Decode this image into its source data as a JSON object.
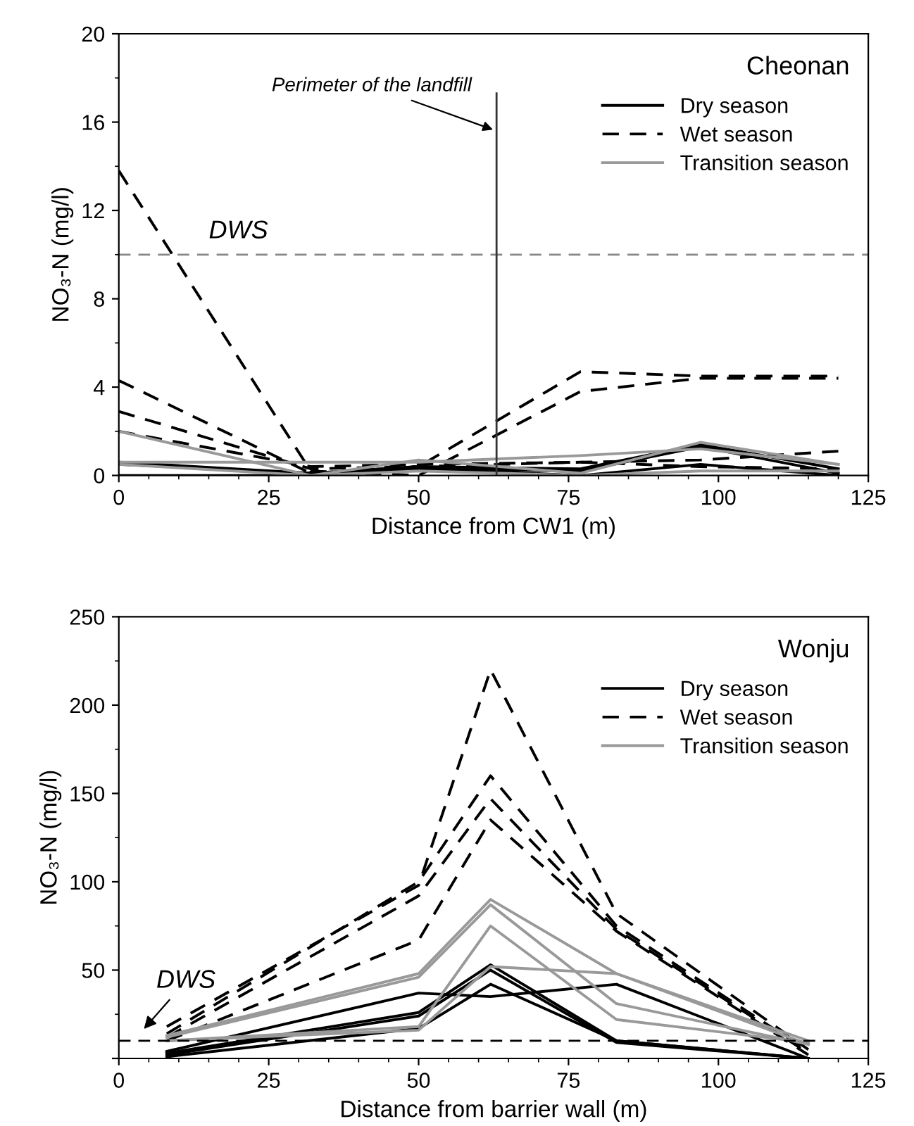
{
  "chart_data": [
    {
      "type": "line",
      "title": "Cheonan",
      "xlabel": "Distance from CW1 (m)",
      "ylabel": "NO₃-N (mg/l)",
      "xlim": [
        0,
        125
      ],
      "xticks": [
        0,
        25,
        50,
        75,
        100,
        125
      ],
      "ylim": [
        0,
        20
      ],
      "yticks": [
        0,
        4,
        8,
        12,
        16,
        20
      ],
      "grid": false,
      "legend": "top right",
      "marker": "none",
      "ref_lines": [
        {
          "axis": "y",
          "value": 10,
          "label": "DWS",
          "color": "#888888",
          "line_style": "dashed"
        },
        {
          "axis": "x",
          "value": 63,
          "label": "Perimeter of the landfill",
          "color": "#333333",
          "line_style": "solid"
        }
      ],
      "series": [
        {
          "name": "Dry season",
          "color": "#000000",
          "line_style": "solid",
          "x": [
            0,
            32,
            50,
            77,
            97,
            120
          ],
          "values": [
            0.5,
            0.1,
            0.4,
            0.3,
            1.4,
            0.3
          ]
        },
        {
          "color": "#000000",
          "line_style": "solid",
          "x": [
            0,
            32,
            50,
            77,
            97,
            120
          ],
          "values": [
            0.0,
            0.0,
            0.3,
            0.0,
            0.5,
            0.0
          ]
        },
        {
          "color": "#000000",
          "line_style": "solid",
          "x": [
            0,
            32,
            50,
            77,
            97,
            120
          ],
          "values": [
            0.6,
            0.1,
            0.3,
            0.2,
            1.3,
            0.1
          ]
        },
        {
          "name": "Wet season",
          "color": "#000000",
          "line_style": "dashed",
          "x": [
            0,
            32,
            50,
            77,
            97,
            120
          ],
          "values": [
            13.8,
            0.2,
            0.0,
            3.8,
            4.4,
            4.4
          ]
        },
        {
          "color": "#000000",
          "line_style": "dashed",
          "x": [
            0,
            32,
            50,
            77,
            97,
            120
          ],
          "values": [
            4.3,
            0.1,
            0.4,
            4.7,
            4.5,
            4.5
          ]
        },
        {
          "color": "#000000",
          "line_style": "dashed",
          "x": [
            0,
            32,
            50,
            77,
            97,
            120
          ],
          "values": [
            2.9,
            0.3,
            0.4,
            0.6,
            0.7,
            1.1
          ]
        },
        {
          "color": "#000000",
          "line_style": "dashed",
          "x": [
            0,
            32,
            50,
            77,
            97,
            120
          ],
          "values": [
            2.0,
            0.4,
            0.5,
            0.6,
            0.4,
            0.3
          ]
        },
        {
          "name": "Transition season",
          "color": "#999999",
          "line_style": "solid",
          "x": [
            0,
            32,
            50,
            77,
            97,
            120
          ],
          "values": [
            2.0,
            0.0,
            0.7,
            0.1,
            1.5,
            0.5
          ]
        },
        {
          "color": "#999999",
          "line_style": "solid",
          "x": [
            0,
            32,
            50,
            77,
            97,
            120
          ],
          "values": [
            0.6,
            0.6,
            0.6,
            0.9,
            1.2,
            0.5
          ]
        },
        {
          "color": "#999999",
          "line_style": "solid",
          "x": [
            0,
            32,
            50,
            77,
            97,
            120
          ],
          "values": [
            0.5,
            0.0,
            0.2,
            0.0,
            0.2,
            0.2
          ]
        }
      ]
    },
    {
      "type": "line",
      "title": "Wonju",
      "xlabel": "Distance from barrier wall (m)",
      "ylabel": "NO₃-N (mg/l)",
      "xlim": [
        0,
        125
      ],
      "xticks": [
        0,
        25,
        50,
        75,
        100,
        125
      ],
      "ylim": [
        0,
        250
      ],
      "yticks": [
        {
          "value": 0,
          "label": null
        },
        50,
        100,
        150,
        200,
        250
      ],
      "grid": false,
      "legend": "top right",
      "marker": "none",
      "ref_lines": [
        {
          "axis": "y",
          "value": 10,
          "label": "DWS",
          "color": "#000000",
          "line_style": "dashed"
        }
      ],
      "series": [
        {
          "name": "Dry season",
          "color": "#000000",
          "line_style": "solid",
          "x": [
            8,
            50,
            62,
            83,
            115
          ],
          "values": [
            4,
            37,
            35,
            42,
            0
          ]
        },
        {
          "color": "#000000",
          "line_style": "solid",
          "x": [
            8,
            50,
            62,
            83,
            115
          ],
          "values": [
            3,
            26,
            53,
            10,
            0
          ]
        },
        {
          "color": "#000000",
          "line_style": "solid",
          "x": [
            8,
            50,
            62,
            83,
            115
          ],
          "values": [
            2,
            24,
            50,
            9,
            0
          ]
        },
        {
          "color": "#000000",
          "line_style": "solid",
          "x": [
            8,
            50,
            62,
            83,
            115
          ],
          "values": [
            1,
            17,
            42,
            10,
            0
          ]
        },
        {
          "name": "Wet season",
          "color": "#000000",
          "line_style": "dashed",
          "x": [
            8,
            50,
            62,
            83,
            115
          ],
          "values": [
            18,
            98,
            220,
            82,
            5
          ]
        },
        {
          "color": "#000000",
          "line_style": "dashed",
          "x": [
            8,
            50,
            62,
            83,
            115
          ],
          "values": [
            14,
            100,
            160,
            75,
            4
          ]
        },
        {
          "color": "#000000",
          "line_style": "dashed",
          "x": [
            8,
            50,
            62,
            83,
            115
          ],
          "values": [
            12,
            92,
            147,
            73,
            3
          ]
        },
        {
          "color": "#000000",
          "line_style": "dashed",
          "x": [
            8,
            50,
            62,
            83,
            115
          ],
          "values": [
            10,
            67,
            135,
            72,
            2
          ]
        },
        {
          "name": "Transition season",
          "color": "#999999",
          "line_style": "solid",
          "x": [
            8,
            50,
            62,
            83,
            115
          ],
          "values": [
            13,
            48,
            90,
            48,
            10
          ]
        },
        {
          "color": "#999999",
          "line_style": "solid",
          "x": [
            8,
            50,
            62,
            83,
            115
          ],
          "values": [
            12,
            46,
            87,
            31,
            8
          ]
        },
        {
          "color": "#999999",
          "line_style": "solid",
          "x": [
            8,
            50,
            62,
            83,
            115
          ],
          "values": [
            10,
            16,
            52,
            48,
            8
          ]
        },
        {
          "color": "#999999",
          "line_style": "solid",
          "x": [
            8,
            50,
            62,
            83,
            115
          ],
          "values": [
            10,
            18,
            75,
            22,
            9
          ]
        }
      ]
    }
  ]
}
